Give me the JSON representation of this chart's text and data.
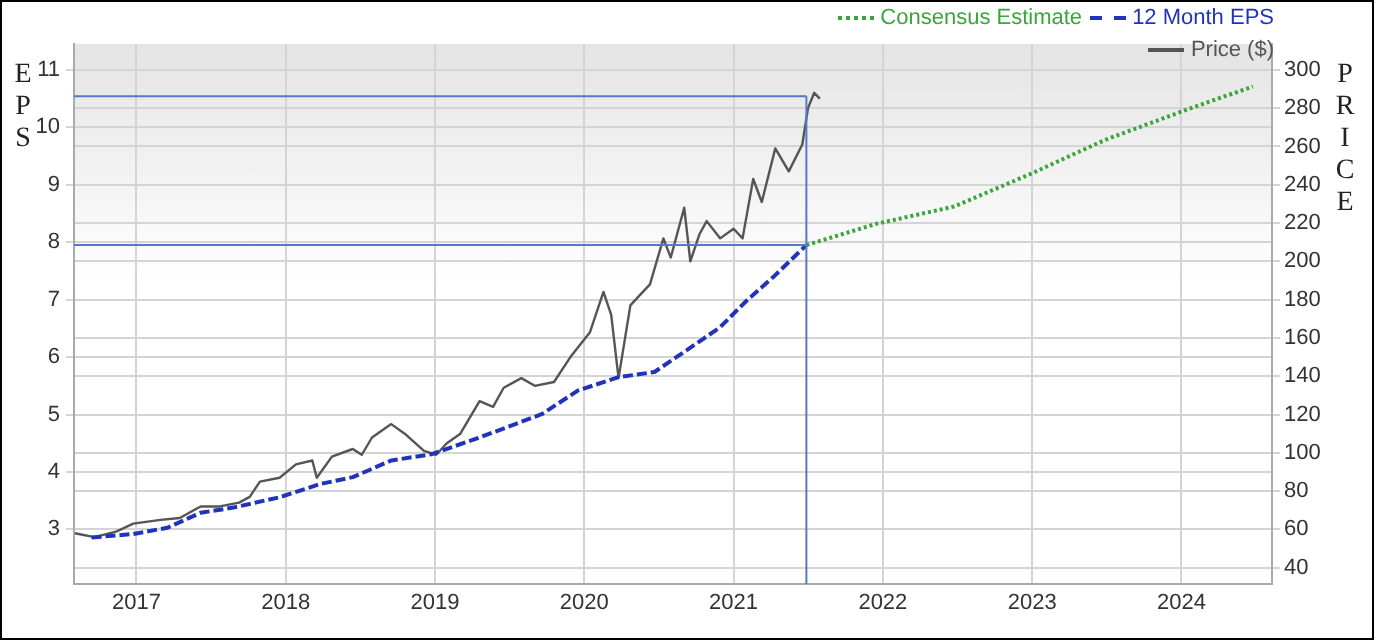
{
  "chart_data": {
    "type": "line",
    "ylabel": "EPS",
    "y2label": "PRICE",
    "legend": "top right",
    "grid": true,
    "marker": "none",
    "xlim": [
      "2016-08-01",
      "2024-08-10"
    ],
    "xticks": [
      "2017",
      "2018",
      "2019",
      "2020",
      "2021",
      "2022",
      "2023",
      "2024"
    ],
    "ylim": [
      2.05,
      11.45
    ],
    "yticks": [
      3,
      4,
      5,
      6,
      7,
      8,
      9,
      10,
      11
    ],
    "y2lim": [
      31.5,
      313.5
    ],
    "y2ticks": [
      40,
      60,
      80,
      100,
      120,
      140,
      160,
      180,
      200,
      220,
      240,
      260,
      280,
      300
    ],
    "series": [
      {
        "name": "Consensus Estimate",
        "color": "#3aa53a",
        "line_style": "dotted",
        "axis": "y",
        "x": [
          "2021-06-28",
          "2021-12-16",
          "2022-06-24",
          "2023-01-01",
          "2023-06-28",
          "2024-01-11",
          "2024-06-24"
        ],
        "values": [
          7.95,
          8.32,
          8.62,
          9.2,
          9.78,
          10.3,
          10.71
        ]
      },
      {
        "name": "12 Month EPS",
        "color": "#2233bb",
        "line_style": "dashed",
        "axis": "y",
        "x": [
          "2016-09-13",
          "2016-12-24",
          "2017-03-18",
          "2017-06-07",
          "2017-08-26",
          "2017-12-17",
          "2018-03-26",
          "2018-06-14",
          "2018-09-16",
          "2018-12-24",
          "2019-04-20",
          "2019-09-20",
          "2019-12-17",
          "2020-03-25",
          "2020-06-21",
          "2020-10-09",
          "2020-11-29",
          "2021-02-03",
          "2021-04-09",
          "2021-06-28"
        ],
        "values": [
          2.86,
          2.92,
          3.03,
          3.29,
          3.38,
          3.56,
          3.79,
          3.91,
          4.2,
          4.31,
          4.6,
          5.01,
          5.42,
          5.65,
          5.74,
          6.27,
          6.52,
          6.99,
          7.4,
          7.95
        ]
      },
      {
        "name": "Price ($)",
        "color": "#555555",
        "line_style": "solid",
        "axis": "y2",
        "x": [
          "2016-08-03",
          "2016-09-20",
          "2016-11-14",
          "2016-12-24",
          "2017-03-01",
          "2017-04-17",
          "2017-06-07",
          "2017-07-24",
          "2017-09-09",
          "2017-10-05",
          "2017-10-30",
          "2017-12-17",
          "2018-01-26",
          "2018-03-07",
          "2018-03-18",
          "2018-04-24",
          "2018-06-14",
          "2018-07-06",
          "2018-07-31",
          "2018-09-16",
          "2018-10-19",
          "2018-12-05",
          "2019-01-04",
          "2019-01-30",
          "2019-03-04",
          "2019-04-20",
          "2019-05-23",
          "2019-06-18",
          "2019-07-31",
          "2019-09-02",
          "2019-10-19",
          "2019-11-28",
          "2020-01-15",
          "2020-02-17",
          "2020-03-07",
          "2020-03-25",
          "2020-04-23",
          "2020-05-19",
          "2020-06-10",
          "2020-07-13",
          "2020-07-31",
          "2020-09-02",
          "2020-09-17",
          "2020-10-09",
          "2020-10-27",
          "2020-11-29",
          "2021-01-01",
          "2021-01-23",
          "2021-02-18",
          "2021-03-11",
          "2021-04-13",
          "2021-05-16",
          "2021-06-18",
          "2021-07-02",
          "2021-07-17",
          "2021-07-31"
        ],
        "values": [
          58,
          56,
          59,
          63,
          65,
          66,
          72,
          72,
          74,
          77,
          85,
          87,
          94,
          96,
          87,
          98,
          102,
          99,
          108,
          115,
          110,
          101,
          99,
          105,
          110,
          127,
          124,
          134,
          139,
          135,
          137,
          150,
          163,
          184,
          172,
          139,
          177,
          183,
          188,
          212,
          202,
          228,
          200,
          214,
          221,
          212,
          217,
          212,
          243,
          231,
          259,
          247,
          261,
          280,
          288,
          285
        ]
      }
    ],
    "ref_lines": [
      {
        "axis": "y",
        "value": 10.54,
        "color": "#5577cc"
      },
      {
        "axis": "y",
        "value": 7.95,
        "color": "#5577cc"
      },
      {
        "axis": "x",
        "value": "2021-06-28",
        "color": "#5577cc"
      }
    ]
  }
}
